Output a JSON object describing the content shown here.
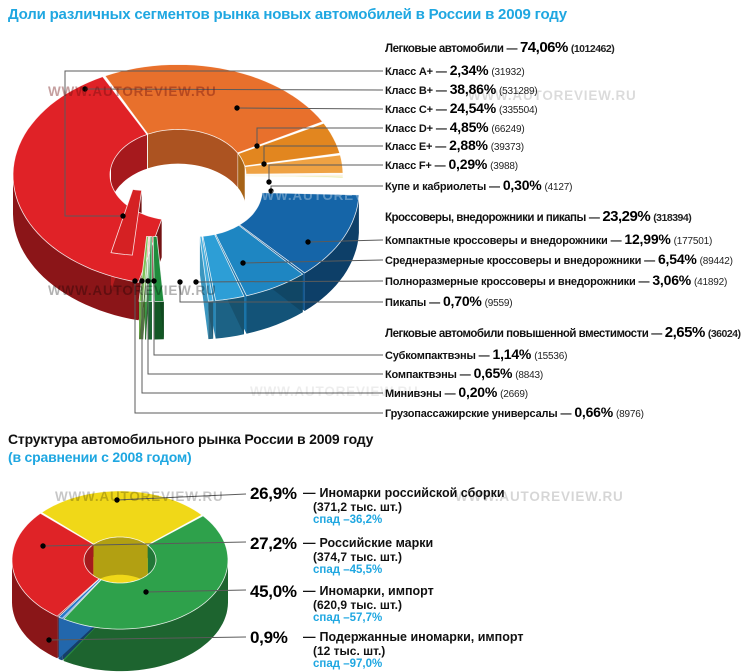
{
  "separator": "—",
  "watermark": "WWW.AUTOREVIEW.RU",
  "accent_color": "#1fa7e1",
  "leader_line_color": "#5b5b5b",
  "chart_data": [
    {
      "type": "pie",
      "subtype": "3d-exploded-donut",
      "title": "Доли различных сегментов рынка новых автомобилей в России в 2009 году",
      "legend_position": "right-leader-lines",
      "groups": [
        {
          "label": "Легковые автомобили",
          "pct": "74,06%",
          "value": 74.06,
          "count": "(1012462)",
          "items": [
            {
              "label": "Класс A+",
              "pct": "2,34%",
              "value": 2.34,
              "count": "(31932)",
              "color": "#d52123"
            },
            {
              "label": "Класс B+",
              "pct": "38,86%",
              "value": 38.86,
              "count": "(531289)",
              "color": "#e02227"
            },
            {
              "label": "Класс C+",
              "pct": "24,54%",
              "value": 24.54,
              "count": "(335504)",
              "color": "#e8702c"
            },
            {
              "label": "Класс D+",
              "pct": "4,85%",
              "value": 4.85,
              "count": "(66249)",
              "color": "#e2861f"
            },
            {
              "label": "Класс E+",
              "pct": "2,88%",
              "value": 2.88,
              "count": "(39373)",
              "color": "#efa243"
            },
            {
              "label": "Класс F+",
              "pct": "0,29%",
              "value": 0.29,
              "count": "(3988)",
              "color": "#f3b256"
            },
            {
              "label": "Купе и кабриолеты",
              "pct": "0,30%",
              "value": 0.3,
              "count": "(4127)",
              "color": "#c9cc2f"
            }
          ]
        },
        {
          "label": "Кроссоверы, внедорожники и пикапы",
          "pct": "23,29%",
          "value": 23.29,
          "count": "(318394)",
          "items": [
            {
              "label": "Компактные кроссоверы и внедорожники",
              "pct": "12,99%",
              "value": 12.99,
              "count": "(177501)",
              "color": "#1565a8"
            },
            {
              "label": "Среднеразмерные кроссоверы и внедорожники",
              "pct": "6,54%",
              "value": 6.54,
              "count": "(89442)",
              "color": "#1e86c2"
            },
            {
              "label": "Полноразмерные кроссоверы и внедорожники",
              "pct": "3,06%",
              "value": 3.06,
              "count": "(41892)",
              "color": "#2d9ed6"
            },
            {
              "label": "Пикапы",
              "pct": "0,70%",
              "value": 0.7,
              "count": "(9559)",
              "color": "#45aede"
            }
          ]
        },
        {
          "label": "Легковые автомобили повышенной вместимости",
          "pct": "2,65%",
          "value": 2.65,
          "count": "(36024)",
          "items": [
            {
              "label": "Субкомпактвэны",
              "pct": "1,14%",
              "value": 1.14,
              "count": "(15536)",
              "color": "#1e8c3c"
            },
            {
              "label": "Компактвэны",
              "pct": "0,65%",
              "value": 0.65,
              "count": "(8843)",
              "color": "#2fa150"
            },
            {
              "label": "Минивэны",
              "pct": "0,20%",
              "value": 0.2,
              "count": "(2669)",
              "color": "#49ae52"
            },
            {
              "label": "Грузопассажирские универсалы",
              "pct": "0,66%",
              "value": 0.66,
              "count": "(8976)",
              "color": "#7cc356"
            }
          ]
        }
      ]
    },
    {
      "type": "pie",
      "subtype": "3d-donut",
      "title": "Структура автомобильного рынка России в 2009 году",
      "subtitle": "(в сравнении с 2008 годом)",
      "legend_position": "right-leader-lines",
      "items": [
        {
          "pct": "26,9%",
          "value": 26.9,
          "label": "Иномарки российской сборки",
          "count": "(371,2 тыс. шт.)",
          "change": "спад –36,2%",
          "color": "#f0d818"
        },
        {
          "pct": "27,2%",
          "value": 27.2,
          "label": "Российские марки",
          "count": "(374,7 тыс. шт.)",
          "change": "спад –45,5%",
          "color": "#df2327"
        },
        {
          "pct": "45,0%",
          "value": 45.0,
          "label": "Иномарки, импорт",
          "count": "(620,9 тыс. шт.)",
          "change": "спад –57,7%",
          "color": "#2ea14b"
        },
        {
          "pct": "0,9%",
          "value": 0.9,
          "label": "Подержанные иномарки, импорт",
          "count": "(12 тыс. шт.)",
          "change": "спад –97,0%",
          "color": "#2878c8"
        }
      ]
    }
  ]
}
